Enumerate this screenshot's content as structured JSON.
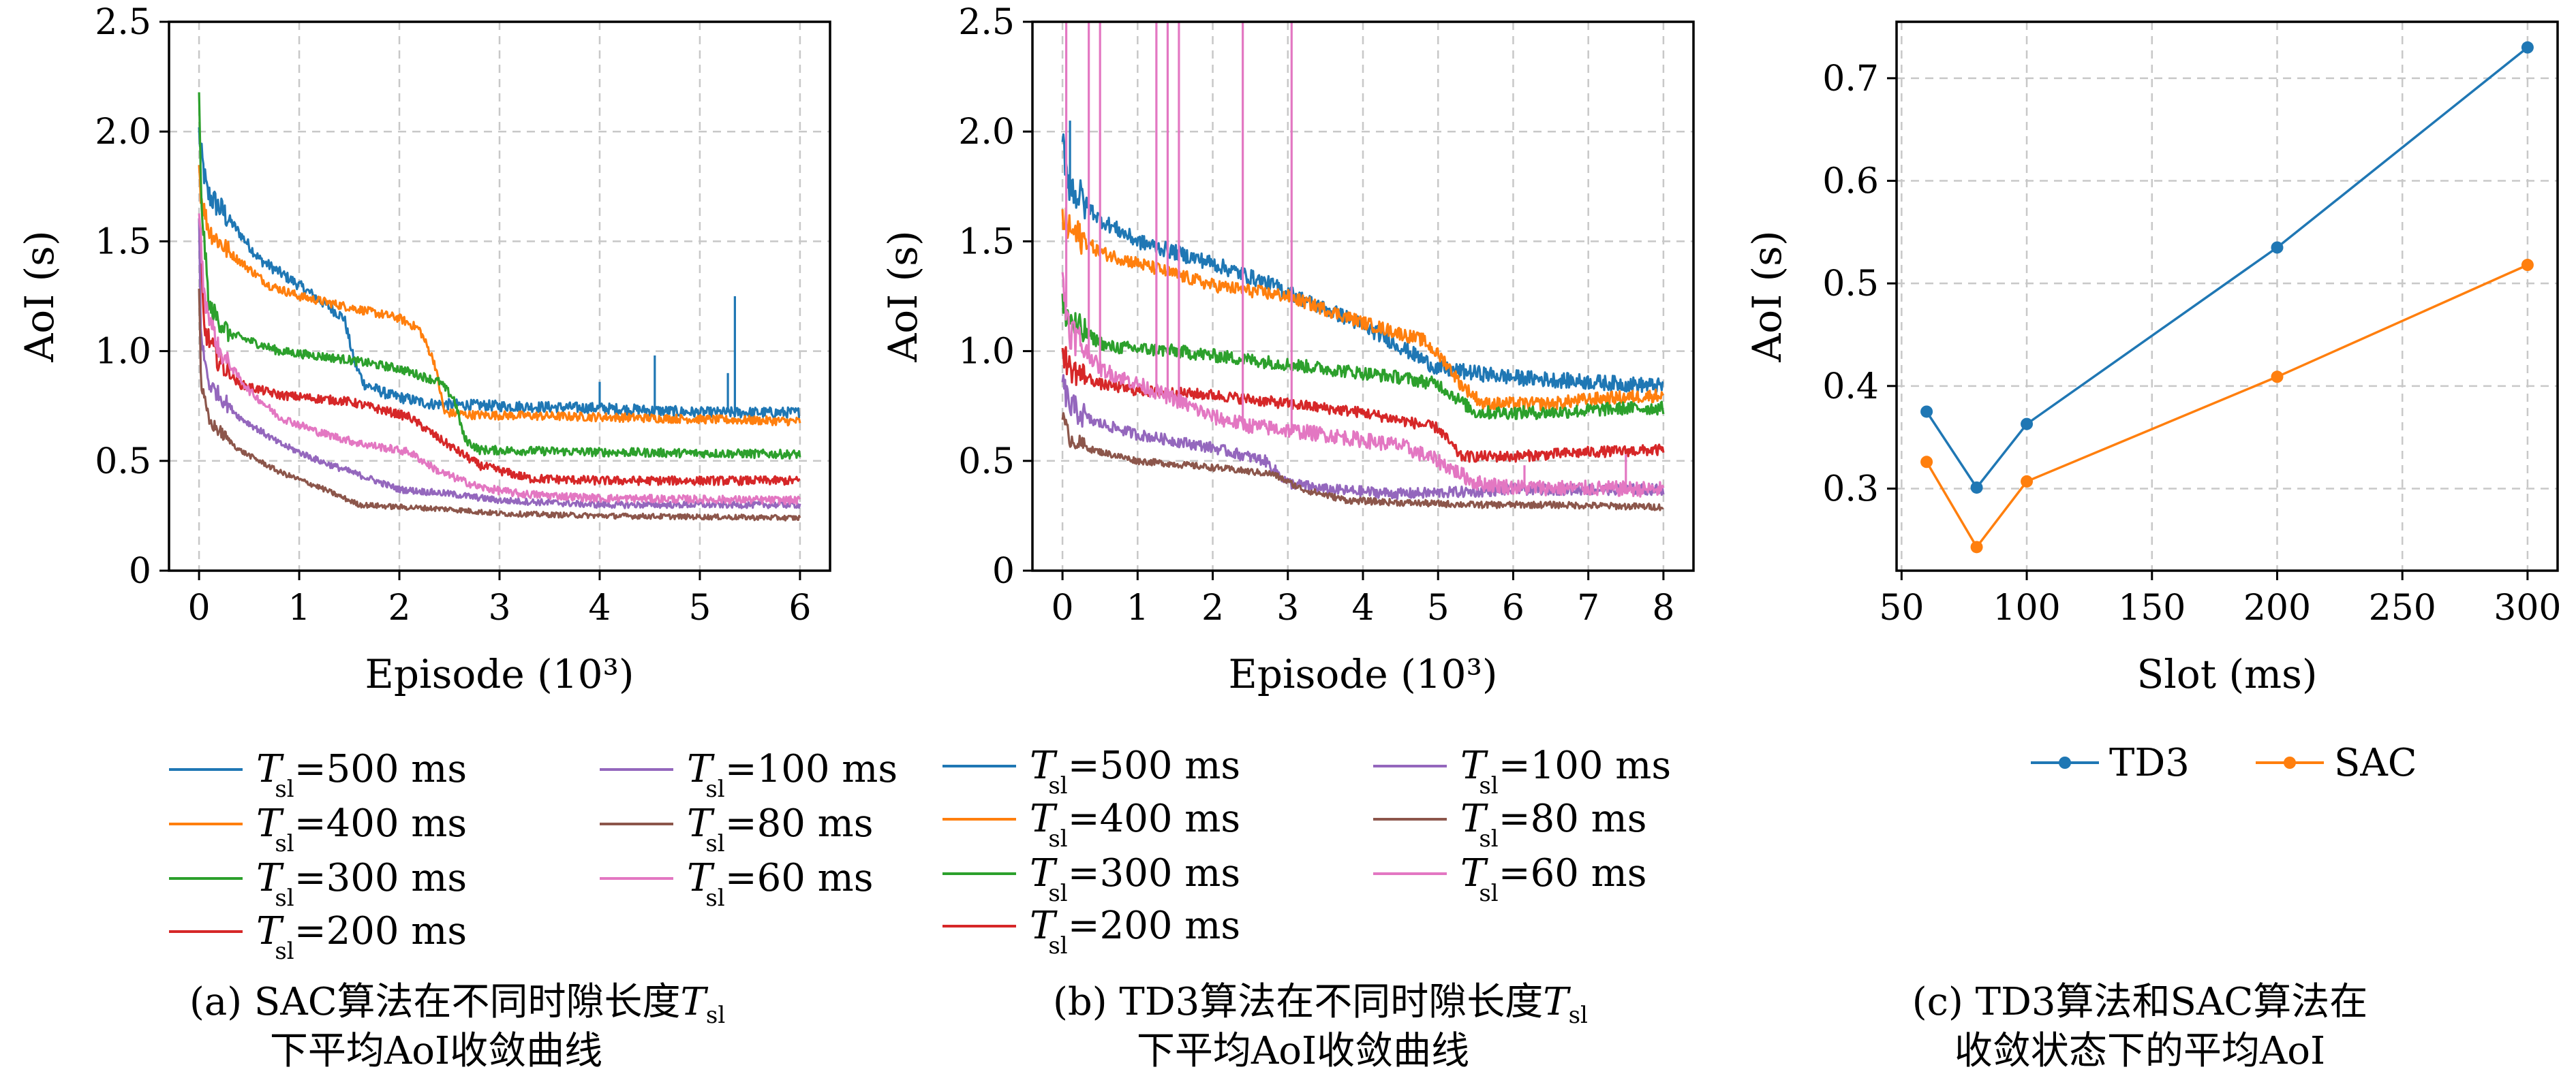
{
  "colors": {
    "T500": "#1f77b4",
    "T400": "#ff7f0e",
    "T300": "#2ca02c",
    "T200": "#d62728",
    "T100": "#9467bd",
    "T80": "#8c564b",
    "T60": "#e377c2",
    "TD3": "#1f77b4",
    "SAC": "#ff7f0e",
    "grid": "#c8c8c8"
  },
  "captions": {
    "a": {
      "line1": "(a) SAC算法在不同时隙长度",
      "sym": "T",
      "sub": "sl",
      "line2": "下平均AoI收敛曲线"
    },
    "b": {
      "line1": "(b) TD3算法在不同时隙长度",
      "sym": "T",
      "sub": "sl",
      "line2": "下平均AoI收敛曲线"
    },
    "c": {
      "line1": "(c) TD3算法和SAC算法在",
      "line2": "收敛状态下的平均AoI"
    }
  },
  "legend_ab": [
    {
      "key": "T500",
      "sym": "T",
      "sub": "sl",
      "label": "=500 ms"
    },
    {
      "key": "T400",
      "sym": "T",
      "sub": "sl",
      "label": "=400 ms"
    },
    {
      "key": "T300",
      "sym": "T",
      "sub": "sl",
      "label": "=300 ms"
    },
    {
      "key": "T200",
      "sym": "T",
      "sub": "sl",
      "label": "=200 ms"
    },
    {
      "key": "T100",
      "sym": "T",
      "sub": "sl",
      "label": "=100 ms"
    },
    {
      "key": "T80",
      "sym": "T",
      "sub": "sl",
      "label": "=80 ms"
    },
    {
      "key": "T60",
      "sym": "T",
      "sub": "sl",
      "label": "=60 ms"
    }
  ],
  "legend_c": [
    {
      "key": "TD3",
      "label": "TD3"
    },
    {
      "key": "SAC",
      "label": "SAC"
    }
  ],
  "chart_data": [
    {
      "id": "a",
      "type": "line",
      "xlabel": "Episode (10³)",
      "ylabel": "AoI (s)",
      "xlim": [
        -0.3,
        6.3
      ],
      "ylim": [
        0,
        2.5
      ],
      "xticks": [
        0,
        1,
        2,
        3,
        4,
        5,
        6
      ],
      "xtick_labels": [
        "0",
        "1",
        "2",
        "3",
        "4",
        "5",
        "6"
      ],
      "yticks": [
        0,
        0.5,
        1.0,
        1.5,
        2.0,
        2.5
      ],
      "ytick_labels": [
        "0",
        "0.5",
        "1.0",
        "1.5",
        "2.0",
        "2.5"
      ],
      "grid": true,
      "series": [
        {
          "key": "T500",
          "noise": 0.025,
          "points": [
            [
              0,
              2.0
            ],
            [
              0.02,
              1.9
            ],
            [
              0.08,
              1.72
            ],
            [
              0.3,
              1.6
            ],
            [
              0.6,
              1.42
            ],
            [
              1.0,
              1.3
            ],
            [
              1.3,
              1.2
            ],
            [
              1.45,
              1.15
            ],
            [
              1.55,
              0.95
            ],
            [
              1.65,
              0.85
            ],
            [
              1.9,
              0.8
            ],
            [
              2.3,
              0.76
            ],
            [
              3.0,
              0.75
            ],
            [
              4.0,
              0.74
            ],
            [
              5.0,
              0.72
            ],
            [
              6.0,
              0.72
            ]
          ],
          "spikes": [
            [
              4.55,
              0.98
            ],
            [
              5.35,
              1.25
            ],
            [
              5.28,
              0.9
            ],
            [
              4.0,
              0.86
            ]
          ]
        },
        {
          "key": "T400",
          "noise": 0.02,
          "points": [
            [
              0,
              1.85
            ],
            [
              0.02,
              1.7
            ],
            [
              0.1,
              1.55
            ],
            [
              0.3,
              1.45
            ],
            [
              0.7,
              1.3
            ],
            [
              1.0,
              1.25
            ],
            [
              1.5,
              1.2
            ],
            [
              2.0,
              1.15
            ],
            [
              2.2,
              1.1
            ],
            [
              2.35,
              0.95
            ],
            [
              2.45,
              0.72
            ],
            [
              2.7,
              0.71
            ],
            [
              4.0,
              0.7
            ],
            [
              5.0,
              0.69
            ],
            [
              6.0,
              0.68
            ]
          ],
          "spikes": []
        },
        {
          "key": "T300",
          "noise": 0.02,
          "points": [
            [
              0,
              2.15
            ],
            [
              0.02,
              1.7
            ],
            [
              0.1,
              1.2
            ],
            [
              0.3,
              1.08
            ],
            [
              0.8,
              1.0
            ],
            [
              1.5,
              0.96
            ],
            [
              2.0,
              0.92
            ],
            [
              2.4,
              0.86
            ],
            [
              2.55,
              0.78
            ],
            [
              2.65,
              0.6
            ],
            [
              2.8,
              0.55
            ],
            [
              4.0,
              0.54
            ],
            [
              6.0,
              0.53
            ]
          ],
          "spikes": []
        },
        {
          "key": "T200",
          "noise": 0.02,
          "points": [
            [
              0,
              1.6
            ],
            [
              0.05,
              1.1
            ],
            [
              0.2,
              0.95
            ],
            [
              0.4,
              0.85
            ],
            [
              0.8,
              0.8
            ],
            [
              1.5,
              0.77
            ],
            [
              2.1,
              0.7
            ],
            [
              2.4,
              0.6
            ],
            [
              2.8,
              0.48
            ],
            [
              3.3,
              0.42
            ],
            [
              4.0,
              0.41
            ],
            [
              6.0,
              0.41
            ]
          ],
          "spikes": []
        },
        {
          "key": "T100",
          "noise": 0.015,
          "points": [
            [
              0,
              1.6
            ],
            [
              0.02,
              1.05
            ],
            [
              0.1,
              0.85
            ],
            [
              0.4,
              0.7
            ],
            [
              0.8,
              0.58
            ],
            [
              1.2,
              0.5
            ],
            [
              1.7,
              0.42
            ],
            [
              2.0,
              0.37
            ],
            [
              2.5,
              0.35
            ],
            [
              3.0,
              0.32
            ],
            [
              4.0,
              0.3
            ],
            [
              6.0,
              0.3
            ]
          ],
          "spikes": []
        },
        {
          "key": "T80",
          "noise": 0.012,
          "points": [
            [
              0,
              1.3
            ],
            [
              0.02,
              0.85
            ],
            [
              0.1,
              0.68
            ],
            [
              0.4,
              0.55
            ],
            [
              0.8,
              0.45
            ],
            [
              1.2,
              0.38
            ],
            [
              1.6,
              0.3
            ],
            [
              2.0,
              0.29
            ],
            [
              2.5,
              0.28
            ],
            [
              3.0,
              0.26
            ],
            [
              4.0,
              0.25
            ],
            [
              6.0,
              0.24
            ]
          ],
          "spikes": []
        },
        {
          "key": "T60",
          "noise": 0.018,
          "points": [
            [
              0,
              1.65
            ],
            [
              0.05,
              1.25
            ],
            [
              0.2,
              1.0
            ],
            [
              0.5,
              0.82
            ],
            [
              0.8,
              0.7
            ],
            [
              1.2,
              0.63
            ],
            [
              1.6,
              0.58
            ],
            [
              2.1,
              0.54
            ],
            [
              2.4,
              0.45
            ],
            [
              2.8,
              0.38
            ],
            [
              3.2,
              0.35
            ],
            [
              4.0,
              0.33
            ],
            [
              6.0,
              0.32
            ]
          ],
          "spikes": []
        }
      ]
    },
    {
      "id": "b",
      "type": "line",
      "xlabel": "Episode (10³)",
      "ylabel": "AoI (s)",
      "xlim": [
        -0.4,
        8.4
      ],
      "ylim": [
        0,
        2.5
      ],
      "xticks": [
        0,
        1,
        2,
        3,
        4,
        5,
        6,
        7,
        8
      ],
      "xtick_labels": [
        "0",
        "1",
        "2",
        "3",
        "4",
        "5",
        "6",
        "7",
        "8"
      ],
      "yticks": [
        0,
        0.5,
        1.0,
        1.5,
        2.0,
        2.5
      ],
      "ytick_labels": [
        "0",
        "0.5",
        "1.0",
        "1.5",
        "2.0",
        "2.5"
      ],
      "grid": true,
      "series": [
        {
          "key": "T500",
          "noise": 0.035,
          "points": [
            [
              0,
              1.95
            ],
            [
              0.1,
              1.75
            ],
            [
              0.5,
              1.6
            ],
            [
              1.0,
              1.5
            ],
            [
              2.0,
              1.4
            ],
            [
              2.8,
              1.3
            ],
            [
              3.3,
              1.22
            ],
            [
              3.8,
              1.15
            ],
            [
              4.2,
              1.08
            ],
            [
              4.6,
              1.0
            ],
            [
              5.0,
              0.92
            ],
            [
              6.0,
              0.88
            ],
            [
              7.0,
              0.86
            ],
            [
              8.0,
              0.84
            ]
          ],
          "spikes": [
            [
              0.1,
              2.05
            ]
          ]
        },
        {
          "key": "T400",
          "noise": 0.03,
          "points": [
            [
              0,
              1.6
            ],
            [
              0.1,
              1.55
            ],
            [
              0.5,
              1.45
            ],
            [
              1.0,
              1.4
            ],
            [
              2.0,
              1.3
            ],
            [
              3.0,
              1.25
            ],
            [
              4.0,
              1.13
            ],
            [
              4.8,
              1.05
            ],
            [
              5.1,
              0.95
            ],
            [
              5.3,
              0.85
            ],
            [
              5.6,
              0.76
            ],
            [
              6.5,
              0.76
            ],
            [
              7.0,
              0.78
            ],
            [
              8.0,
              0.8
            ]
          ],
          "spikes": []
        },
        {
          "key": "T300",
          "noise": 0.03,
          "points": [
            [
              0,
              1.2
            ],
            [
              0.2,
              1.1
            ],
            [
              0.6,
              1.02
            ],
            [
              1.5,
              1.0
            ],
            [
              2.5,
              0.96
            ],
            [
              3.5,
              0.92
            ],
            [
              4.5,
              0.88
            ],
            [
              5.0,
              0.85
            ],
            [
              5.5,
              0.72
            ],
            [
              6.5,
              0.72
            ],
            [
              7.5,
              0.74
            ],
            [
              8.0,
              0.74
            ]
          ],
          "spikes": []
        },
        {
          "key": "T200",
          "noise": 0.025,
          "points": [
            [
              0,
              1.0
            ],
            [
              0.1,
              0.92
            ],
            [
              0.5,
              0.85
            ],
            [
              1.0,
              0.82
            ],
            [
              2.0,
              0.8
            ],
            [
              3.0,
              0.76
            ],
            [
              4.0,
              0.72
            ],
            [
              5.0,
              0.65
            ],
            [
              5.3,
              0.52
            ],
            [
              6.0,
              0.52
            ],
            [
              7.0,
              0.54
            ],
            [
              8.0,
              0.55
            ]
          ],
          "spikes": []
        },
        {
          "key": "T100",
          "noise": 0.025,
          "points": [
            [
              0,
              0.85
            ],
            [
              0.1,
              0.75
            ],
            [
              0.4,
              0.68
            ],
            [
              1.0,
              0.62
            ],
            [
              2.0,
              0.56
            ],
            [
              2.7,
              0.5
            ],
            [
              3.0,
              0.4
            ],
            [
              3.5,
              0.37
            ],
            [
              4.5,
              0.35
            ],
            [
              5.5,
              0.36
            ],
            [
              6.0,
              0.37
            ],
            [
              8.0,
              0.37
            ]
          ],
          "spikes": []
        },
        {
          "key": "T80",
          "noise": 0.015,
          "points": [
            [
              0,
              0.7
            ],
            [
              0.1,
              0.6
            ],
            [
              0.4,
              0.55
            ],
            [
              1.0,
              0.5
            ],
            [
              2.0,
              0.47
            ],
            [
              2.8,
              0.44
            ],
            [
              3.2,
              0.37
            ],
            [
              3.8,
              0.32
            ],
            [
              4.5,
              0.31
            ],
            [
              5.5,
              0.3
            ],
            [
              6.5,
              0.3
            ],
            [
              8.0,
              0.29
            ]
          ],
          "spikes": []
        },
        {
          "key": "T60",
          "noise": 0.035,
          "points": [
            [
              0,
              1.3
            ],
            [
              0.1,
              1.1
            ],
            [
              0.5,
              0.92
            ],
            [
              1.0,
              0.85
            ],
            [
              1.5,
              0.78
            ],
            [
              2.0,
              0.7
            ],
            [
              2.5,
              0.66
            ],
            [
              3.5,
              0.62
            ],
            [
              4.5,
              0.57
            ],
            [
              5.0,
              0.5
            ],
            [
              5.5,
              0.4
            ],
            [
              6.0,
              0.38
            ],
            [
              8.0,
              0.37
            ]
          ],
          "spikes": [
            [
              0.05,
              2.5
            ],
            [
              0.35,
              2.5
            ],
            [
              0.5,
              2.5
            ],
            [
              1.25,
              2.5
            ],
            [
              1.4,
              2.5
            ],
            [
              1.55,
              2.5
            ],
            [
              2.4,
              2.5
            ],
            [
              3.05,
              2.5
            ],
            [
              6.15,
              0.48
            ],
            [
              7.5,
              0.53
            ]
          ]
        }
      ]
    },
    {
      "id": "c",
      "type": "line",
      "xlabel": "Slot (ms)",
      "ylabel": "AoI (s)",
      "x": [
        60,
        80,
        100,
        200,
        300
      ],
      "xlim": [
        48,
        312
      ],
      "ylim": [
        0.22,
        0.755
      ],
      "xticks": [
        50,
        100,
        150,
        200,
        250,
        300
      ],
      "xtick_labels": [
        "50",
        "100",
        "150",
        "200",
        "250",
        "300"
      ],
      "yticks": [
        0.3,
        0.4,
        0.5,
        0.6,
        0.7
      ],
      "ytick_labels": [
        "0.3",
        "0.4",
        "0.5",
        "0.6",
        "0.7"
      ],
      "grid": true,
      "legend_position": "below",
      "series": [
        {
          "key": "TD3",
          "name": "TD3",
          "values": [
            0.375,
            0.301,
            0.363,
            0.535,
            0.73
          ]
        },
        {
          "key": "SAC",
          "name": "SAC",
          "values": [
            0.326,
            0.243,
            0.307,
            0.409,
            0.518
          ]
        }
      ]
    }
  ]
}
